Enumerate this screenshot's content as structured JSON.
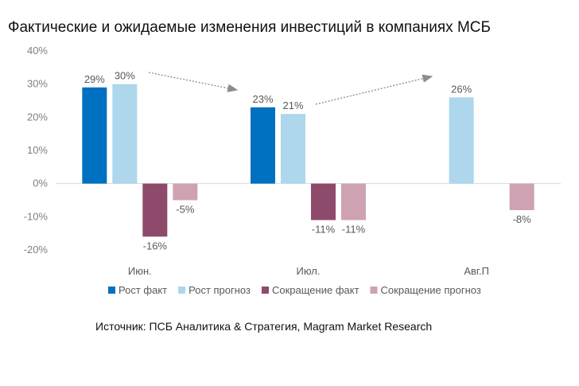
{
  "title": "Фактические и ожидаемые изменения инвестиций в компаниях МСБ",
  "source": "Источник: ПСБ Аналитика & Стратегия, Magram Market Research",
  "colors": {
    "growth_fact": "#0070c0",
    "growth_forecast": "#aed6ec",
    "decline_fact": "#8e4a6b",
    "decline_forecast": "#cfa2b3",
    "axis": "#d9d9d9",
    "arrow": "#8c8c8c"
  },
  "chart_data": {
    "type": "bar",
    "categories": [
      "Июн.",
      "Июл.",
      "Авг.П"
    ],
    "series": [
      {
        "name": "Рост факт",
        "values": [
          29,
          23,
          null
        ],
        "labels": [
          "29%",
          "23%",
          ""
        ]
      },
      {
        "name": "Рост прогноз",
        "values": [
          30,
          21,
          26
        ],
        "labels": [
          "30%",
          "21%",
          "26%"
        ]
      },
      {
        "name": "Сокращение факт",
        "values": [
          -16,
          -11,
          null
        ],
        "labels": [
          "-16%",
          "-11%",
          ""
        ]
      },
      {
        "name": "Сокращение прогноз",
        "values": [
          -5,
          -11,
          -8
        ],
        "labels": [
          "-5%",
          "-11%",
          "-8%"
        ]
      }
    ],
    "ylim": [
      -20,
      40
    ],
    "yticks": [
      40,
      30,
      20,
      10,
      0,
      -10,
      -20
    ],
    "ytick_labels": [
      "40%",
      "30%",
      "20%",
      "10%",
      "0%",
      "-10%",
      "-20%"
    ],
    "xlabel": "",
    "ylabel": "",
    "grid": false,
    "legend": "bottom"
  }
}
